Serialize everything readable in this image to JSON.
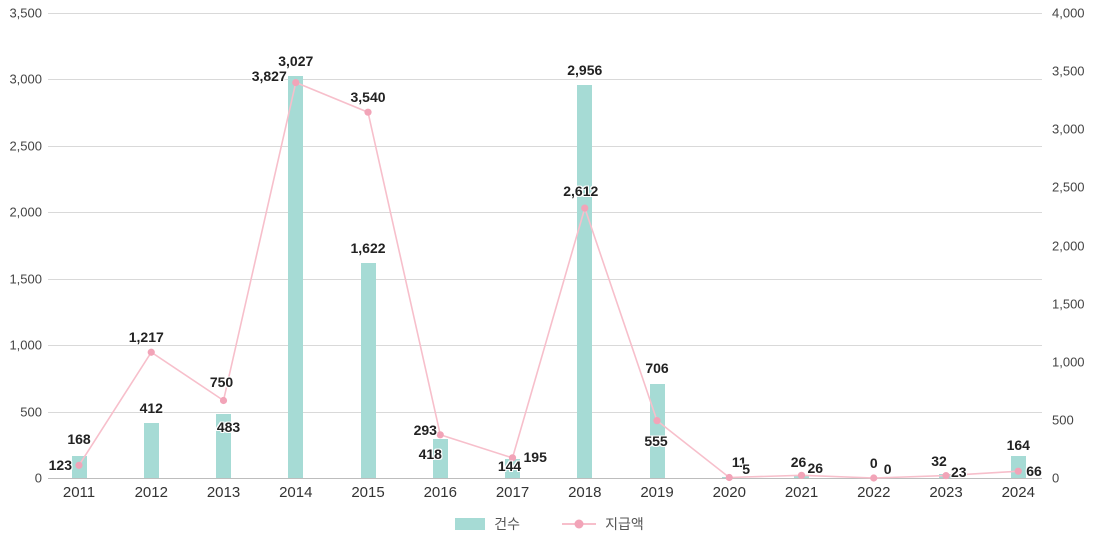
{
  "chart_data": {
    "type": "bar",
    "subtype": "bar-line-combo",
    "title": "",
    "categories": [
      "2011",
      "2012",
      "2013",
      "2014",
      "2015",
      "2016",
      "2017",
      "2018",
      "2019",
      "2020",
      "2021",
      "2022",
      "2023",
      "2024"
    ],
    "series": [
      {
        "name": "건수",
        "type": "bar",
        "axis": "left",
        "color": "#a6dbd5",
        "values": [
          168,
          412,
          483,
          3027,
          1622,
          293,
          144,
          2956,
          706,
          11,
          26,
          0,
          32,
          164
        ]
      },
      {
        "name": "지급액",
        "type": "line",
        "axis": "right",
        "color": "#f7bfcb",
        "marker_color": "#f2a4b8",
        "values": [
          123,
          1217,
          750,
          3827,
          3540,
          418,
          195,
          2612,
          555,
          5,
          26,
          0,
          23,
          66
        ]
      }
    ],
    "y_axis_left": {
      "min": 0,
      "max": 3500,
      "tick_step": 500,
      "tick_labels": [
        "0",
        "500",
        "1,000",
        "1,500",
        "2,000",
        "2,500",
        "3,000",
        "3,500"
      ]
    },
    "y_axis_right": {
      "min": 0,
      "max": 4000,
      "tick_step": 500,
      "plot_max_hint": 4500,
      "tick_labels": [
        "0",
        "500",
        "1,000",
        "1,500",
        "2,000",
        "2,500",
        "3,000",
        "3,500",
        "4,000"
      ]
    },
    "grid": "horizontal-only",
    "legend_position": "bottom-center",
    "data_labels_visible": true,
    "colors": {
      "background": "#ffffff",
      "gridline": "#d9d9d9",
      "axis_baseline": "#bdbdbd",
      "tick_text": "#444444",
      "data_label_text": "#222222"
    }
  }
}
